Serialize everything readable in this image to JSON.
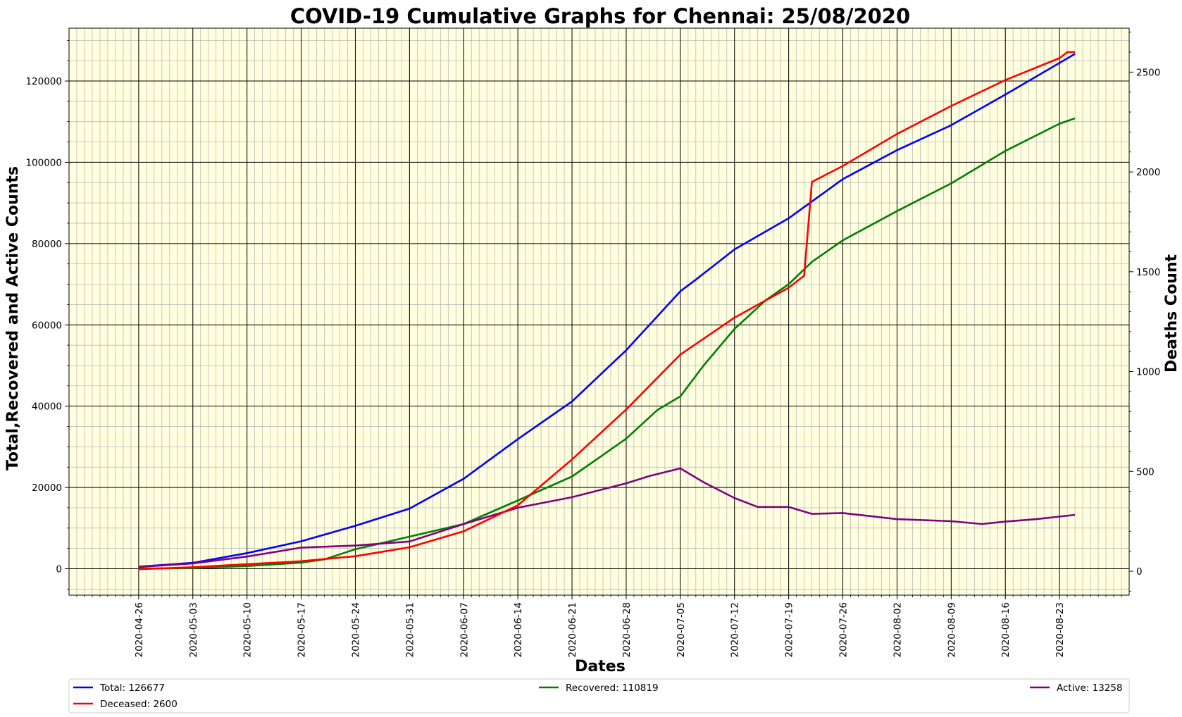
{
  "chart_data": {
    "type": "line",
    "title": "COVID-19 Cumulative Graphs for Chennai: 25/08/2020",
    "xlabel": "Dates",
    "ylabel": "Total,Recovered and Active Counts",
    "y2label": "Deaths Count",
    "x_start": "2020-04-26",
    "x_end": "2020-08-25",
    "xlim": [
      "2020-04-17",
      "2020-09-01"
    ],
    "ylim": [
      -6500,
      133000
    ],
    "y2lim": [
      -120,
      2720
    ],
    "x_ticks": [
      "2020-04-26",
      "2020-05-03",
      "2020-05-10",
      "2020-05-17",
      "2020-05-24",
      "2020-05-31",
      "2020-06-07",
      "2020-06-14",
      "2020-06-21",
      "2020-06-28",
      "2020-07-05",
      "2020-07-12",
      "2020-07-19",
      "2020-07-26",
      "2020-08-02",
      "2020-08-09",
      "2020-08-16",
      "2020-08-23"
    ],
    "y_ticks": [
      0,
      20000,
      40000,
      60000,
      80000,
      100000,
      120000
    ],
    "y2_ticks": [
      0,
      500,
      1000,
      1500,
      2000,
      2500
    ],
    "grid": true,
    "legend_position": "bottom",
    "series": [
      {
        "name": "Total: 126677",
        "color": "#0000ff",
        "axis": "left",
        "points": [
          [
            "2020-04-26",
            523
          ],
          [
            "2020-05-03",
            1458
          ],
          [
            "2020-05-10",
            3839
          ],
          [
            "2020-05-17",
            6750
          ],
          [
            "2020-05-24",
            10576
          ],
          [
            "2020-05-31",
            14802
          ],
          [
            "2020-06-07",
            22149
          ],
          [
            "2020-06-14",
            31896
          ],
          [
            "2020-06-21",
            41172
          ],
          [
            "2020-06-28",
            53762
          ],
          [
            "2020-07-05",
            68254
          ],
          [
            "2020-07-07",
            71116
          ],
          [
            "2020-07-12",
            78573
          ],
          [
            "2020-07-19",
            86224
          ],
          [
            "2020-07-26",
            95857
          ],
          [
            "2020-08-02",
            102985
          ],
          [
            "2020-08-09",
            109117
          ],
          [
            "2020-08-16",
            116650
          ],
          [
            "2020-08-25",
            126677
          ]
        ]
      },
      {
        "name": "Recovered: 110819",
        "color": "#008000",
        "axis": "left",
        "points": [
          [
            "2020-04-26",
            50
          ],
          [
            "2020-05-03",
            150
          ],
          [
            "2020-05-10",
            650
          ],
          [
            "2020-05-17",
            1500
          ],
          [
            "2020-05-20",
            2300
          ],
          [
            "2020-05-24",
            4800
          ],
          [
            "2020-05-31",
            7900
          ],
          [
            "2020-06-07",
            11000
          ],
          [
            "2020-06-14",
            16800
          ],
          [
            "2020-06-21",
            22700
          ],
          [
            "2020-06-25",
            28000
          ],
          [
            "2020-06-28",
            32000
          ],
          [
            "2020-07-02",
            39000
          ],
          [
            "2020-07-05",
            42400
          ],
          [
            "2020-07-08",
            50000
          ],
          [
            "2020-07-12",
            59000
          ],
          [
            "2020-07-16",
            66000
          ],
          [
            "2020-07-19",
            70000
          ],
          [
            "2020-07-22",
            75500
          ],
          [
            "2020-07-26",
            80800
          ],
          [
            "2020-08-02",
            88000
          ],
          [
            "2020-08-09",
            94800
          ],
          [
            "2020-08-16",
            102800
          ],
          [
            "2020-08-23",
            109500
          ],
          [
            "2020-08-25",
            110819
          ]
        ]
      },
      {
        "name": "Active: 13258",
        "color": "#800080",
        "axis": "left",
        "points": [
          [
            "2020-04-26",
            450
          ],
          [
            "2020-05-03",
            1300
          ],
          [
            "2020-05-10",
            3000
          ],
          [
            "2020-05-17",
            5200
          ],
          [
            "2020-05-24",
            5700
          ],
          [
            "2020-05-31",
            6700
          ],
          [
            "2020-06-07",
            11000
          ],
          [
            "2020-06-14",
            15000
          ],
          [
            "2020-06-21",
            17600
          ],
          [
            "2020-06-28",
            21000
          ],
          [
            "2020-07-01",
            22800
          ],
          [
            "2020-07-05",
            24700
          ],
          [
            "2020-07-08",
            21300
          ],
          [
            "2020-07-12",
            17400
          ],
          [
            "2020-07-15",
            15200
          ],
          [
            "2020-07-19",
            15200
          ],
          [
            "2020-07-22",
            13500
          ],
          [
            "2020-07-26",
            13700
          ],
          [
            "2020-08-02",
            12200
          ],
          [
            "2020-08-09",
            11700
          ],
          [
            "2020-08-13",
            11000
          ],
          [
            "2020-08-16",
            11600
          ],
          [
            "2020-08-20",
            12200
          ],
          [
            "2020-08-25",
            13258
          ]
        ]
      },
      {
        "name": "Deceased: 2600",
        "color": "#ff0000",
        "axis": "right",
        "points": [
          [
            "2020-04-26",
            10
          ],
          [
            "2020-05-03",
            20
          ],
          [
            "2020-05-10",
            35
          ],
          [
            "2020-05-17",
            50
          ],
          [
            "2020-05-24",
            75
          ],
          [
            "2020-05-31",
            120
          ],
          [
            "2020-06-07",
            200
          ],
          [
            "2020-06-14",
            330
          ],
          [
            "2020-06-21",
            560
          ],
          [
            "2020-06-28",
            810
          ],
          [
            "2020-07-05",
            1085
          ],
          [
            "2020-07-12",
            1270
          ],
          [
            "2020-07-19",
            1420
          ],
          [
            "2020-07-21",
            1480
          ],
          [
            "2020-07-22",
            1950
          ],
          [
            "2020-07-26",
            2030
          ],
          [
            "2020-08-02",
            2190
          ],
          [
            "2020-08-09",
            2330
          ],
          [
            "2020-08-16",
            2460
          ],
          [
            "2020-08-23",
            2570
          ],
          [
            "2020-08-24",
            2600
          ],
          [
            "2020-08-25",
            2600
          ]
        ]
      }
    ]
  }
}
